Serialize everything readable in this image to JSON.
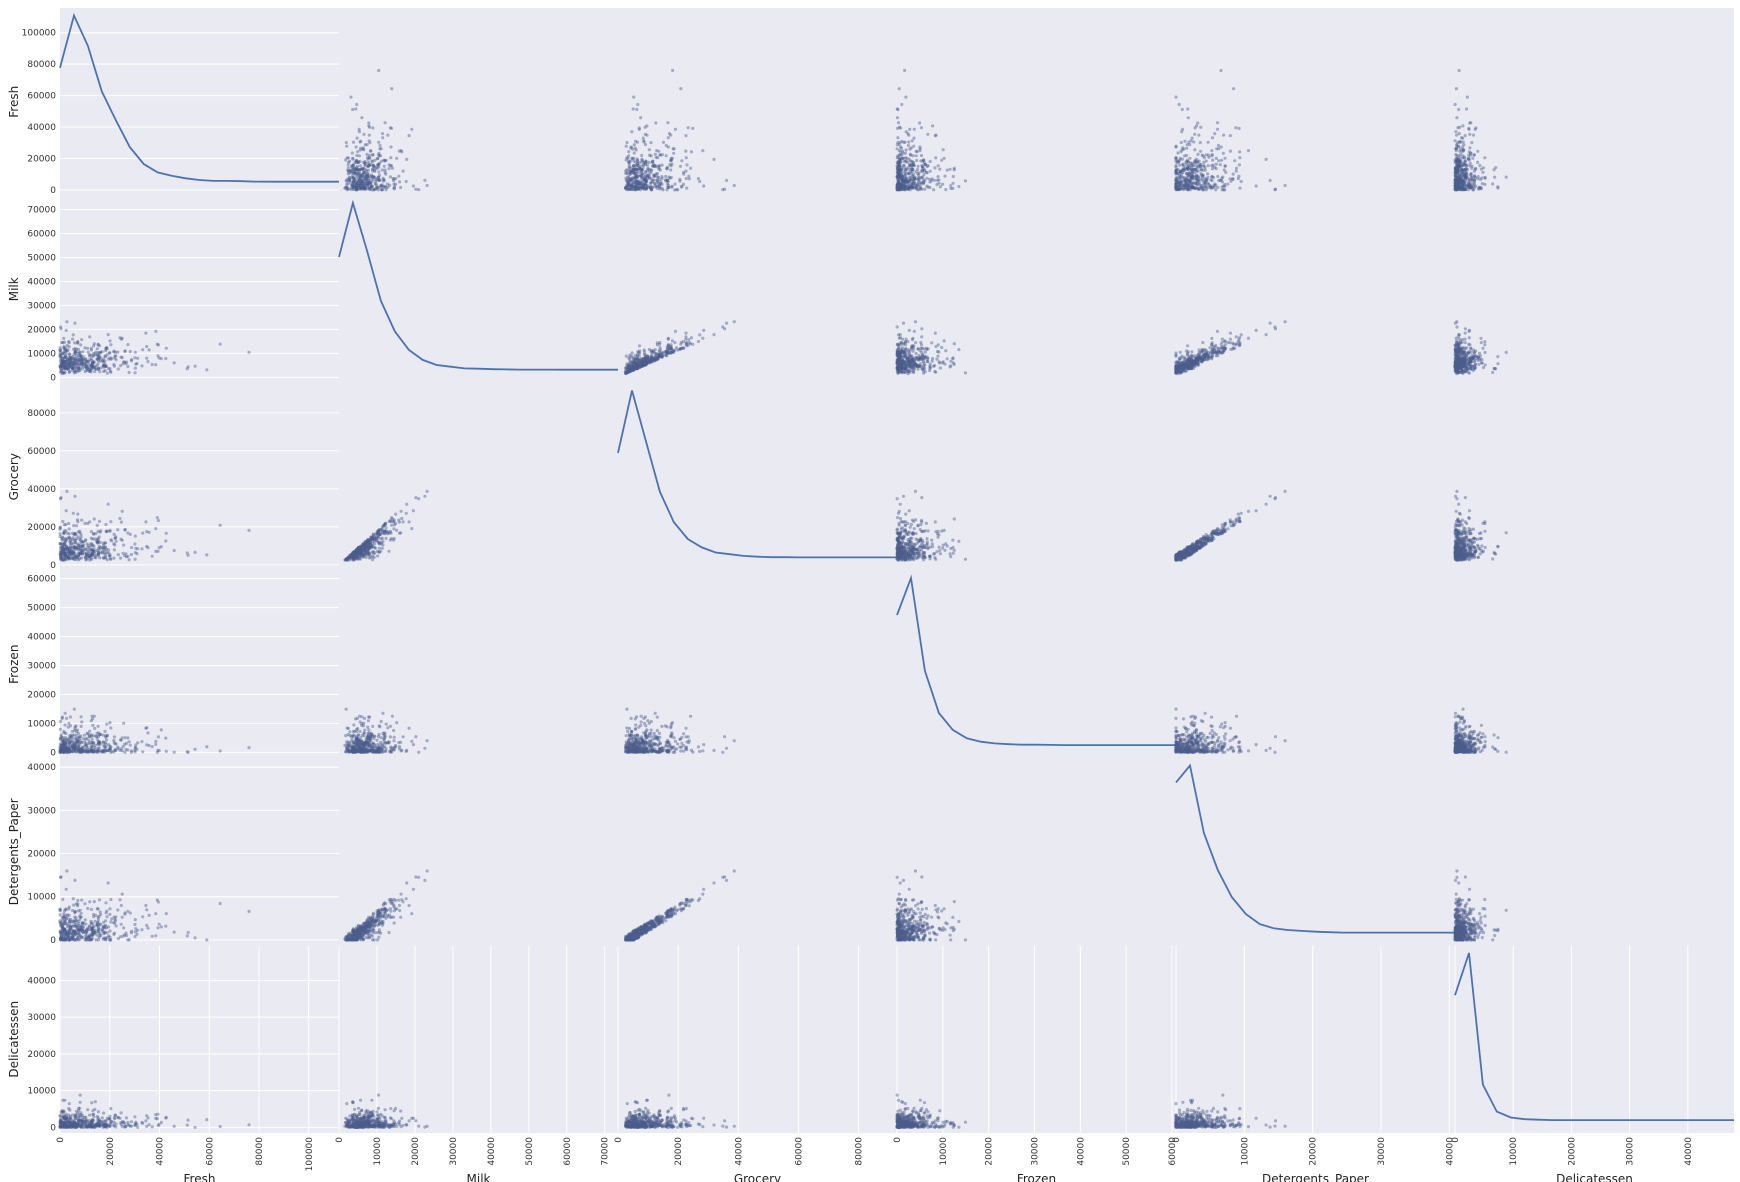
{
  "chart_data": {
    "type": "scatter",
    "style": "scatter-matrix with KDE diagonal",
    "variables": [
      "Fresh",
      "Milk",
      "Grocery",
      "Frozen",
      "Detergents_Paper",
      "Delicatessen"
    ],
    "ranges": {
      "Fresh": [
        0,
        112151
      ],
      "Milk": [
        0,
        73498
      ],
      "Grocery": [
        0,
        92780
      ],
      "Frozen": [
        0,
        60869
      ],
      "Detergents_Paper": [
        0,
        40827
      ],
      "Delicatessen": [
        0,
        47943
      ]
    },
    "ticks": {
      "Fresh": [
        {
          "v": 0,
          "label": "0"
        },
        {
          "v": 20000,
          "label": "20000"
        },
        {
          "v": 40000,
          "label": "40000"
        },
        {
          "v": 60000,
          "label": "60000"
        },
        {
          "v": 80000,
          "label": "80000"
        },
        {
          "v": 100000,
          "label": "100000"
        }
      ],
      "Milk": [
        {
          "v": 0,
          "label": "0"
        },
        {
          "v": 10000,
          "label": "10000"
        },
        {
          "v": 20000,
          "label": "20000"
        },
        {
          "v": 30000,
          "label": "30000"
        },
        {
          "v": 40000,
          "label": "40000"
        },
        {
          "v": 50000,
          "label": "50000"
        },
        {
          "v": 60000,
          "label": "60000"
        },
        {
          "v": 70000,
          "label": "70000"
        }
      ],
      "Grocery": [
        {
          "v": 0,
          "label": "0"
        },
        {
          "v": 20000,
          "label": "20000"
        },
        {
          "v": 40000,
          "label": "40000"
        },
        {
          "v": 60000,
          "label": "60000"
        },
        {
          "v": 80000,
          "label": "80000"
        }
      ],
      "Frozen": [
        {
          "v": 0,
          "label": "0"
        },
        {
          "v": 10000,
          "label": "10000"
        },
        {
          "v": 20000,
          "label": "20000"
        },
        {
          "v": 30000,
          "label": "30000"
        },
        {
          "v": 40000,
          "label": "40000"
        },
        {
          "v": 50000,
          "label": "50000"
        },
        {
          "v": 60000,
          "label": "60000"
        }
      ],
      "Detergents_Paper": [
        {
          "v": 0,
          "label": "0"
        },
        {
          "v": 10000,
          "label": "10000"
        },
        {
          "v": 20000,
          "label": "20000"
        },
        {
          "v": 30000,
          "label": "30000"
        },
        {
          "v": 40000,
          "label": "40000"
        }
      ],
      "Delicatessen": [
        {
          "v": 0,
          "label": "0"
        },
        {
          "v": 10000,
          "label": "10000"
        },
        {
          "v": 20000,
          "label": "20000"
        },
        {
          "v": 30000,
          "label": "30000"
        },
        {
          "v": 40000,
          "label": "40000"
        }
      ]
    },
    "kde": {
      "Fresh": [
        0.69,
        1.0,
        0.82,
        0.55,
        0.38,
        0.22,
        0.12,
        0.07,
        0.05,
        0.035,
        0.025,
        0.02,
        0.02,
        0.018,
        0.016,
        0.015,
        0.015,
        0.015,
        0.015,
        0.015,
        0.015
      ],
      "Milk": [
        0.68,
        1.0,
        0.72,
        0.42,
        0.24,
        0.13,
        0.07,
        0.04,
        0.03,
        0.02,
        0.018,
        0.015,
        0.014,
        0.013,
        0.013,
        0.013,
        0.012,
        0.012,
        0.012,
        0.012,
        0.012
      ],
      "Grocery": [
        0.63,
        1.0,
        0.7,
        0.4,
        0.22,
        0.12,
        0.07,
        0.04,
        0.03,
        0.02,
        0.015,
        0.012,
        0.012,
        0.011,
        0.011,
        0.011,
        0.011,
        0.011,
        0.011,
        0.011,
        0.011
      ],
      "Frozen": [
        0.78,
        1.0,
        0.45,
        0.2,
        0.1,
        0.05,
        0.03,
        0.02,
        0.015,
        0.012,
        0.012,
        0.011,
        0.01,
        0.01,
        0.01,
        0.01,
        0.01,
        0.01,
        0.01,
        0.01,
        0.01
      ],
      "Detergents_Paper": [
        0.9,
        1.0,
        0.6,
        0.38,
        0.22,
        0.12,
        0.06,
        0.035,
        0.025,
        0.02,
        0.015,
        0.012,
        0.01,
        0.01,
        0.01,
        0.01,
        0.01,
        0.01,
        0.01,
        0.01,
        0.01
      ],
      "Delicatessen": [
        0.75,
        1.0,
        0.22,
        0.06,
        0.025,
        0.015,
        0.012,
        0.01,
        0.01,
        0.01,
        0.01,
        0.01,
        0.01,
        0.01,
        0.01,
        0.01,
        0.01,
        0.01,
        0.01,
        0.01,
        0.01
      ]
    },
    "grid": true,
    "legend": "none",
    "colors": {
      "panel_bg": "#eaeaf2",
      "grid": "#ffffff",
      "point": "#4c5e8c",
      "kde_line": "#4c72b0"
    }
  }
}
